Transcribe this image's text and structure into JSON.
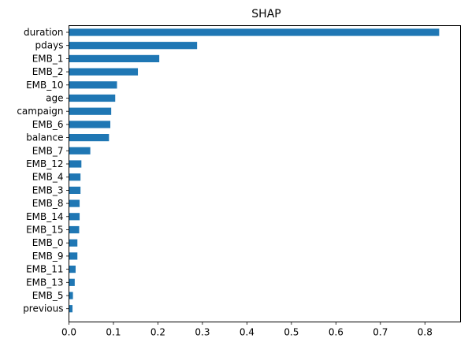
{
  "chart_data": {
    "type": "bar",
    "orientation": "horizontal",
    "title": "SHAP",
    "xlabel": "",
    "ylabel": "",
    "xlim": [
      0,
      0.88
    ],
    "xticks": [
      "0.0",
      "0.1",
      "0.2",
      "0.3",
      "0.4",
      "0.5",
      "0.6",
      "0.7",
      "0.8"
    ],
    "grid": false,
    "legend": "none",
    "bar_color": "#1f77b4",
    "categories": [
      "duration",
      "pdays",
      "EMB_1",
      "EMB_2",
      "EMB_10",
      "age",
      "campaign",
      "EMB_6",
      "balance",
      "EMB_7",
      "EMB_12",
      "EMB_4",
      "EMB_3",
      "EMB_8",
      "EMB_14",
      "EMB_15",
      "EMB_0",
      "EMB_9",
      "EMB_11",
      "EMB_13",
      "EMB_5",
      "previous"
    ],
    "values": [
      0.832,
      0.288,
      0.203,
      0.155,
      0.108,
      0.104,
      0.095,
      0.093,
      0.09,
      0.048,
      0.028,
      0.026,
      0.026,
      0.024,
      0.024,
      0.023,
      0.019,
      0.019,
      0.015,
      0.013,
      0.009,
      0.008
    ]
  }
}
